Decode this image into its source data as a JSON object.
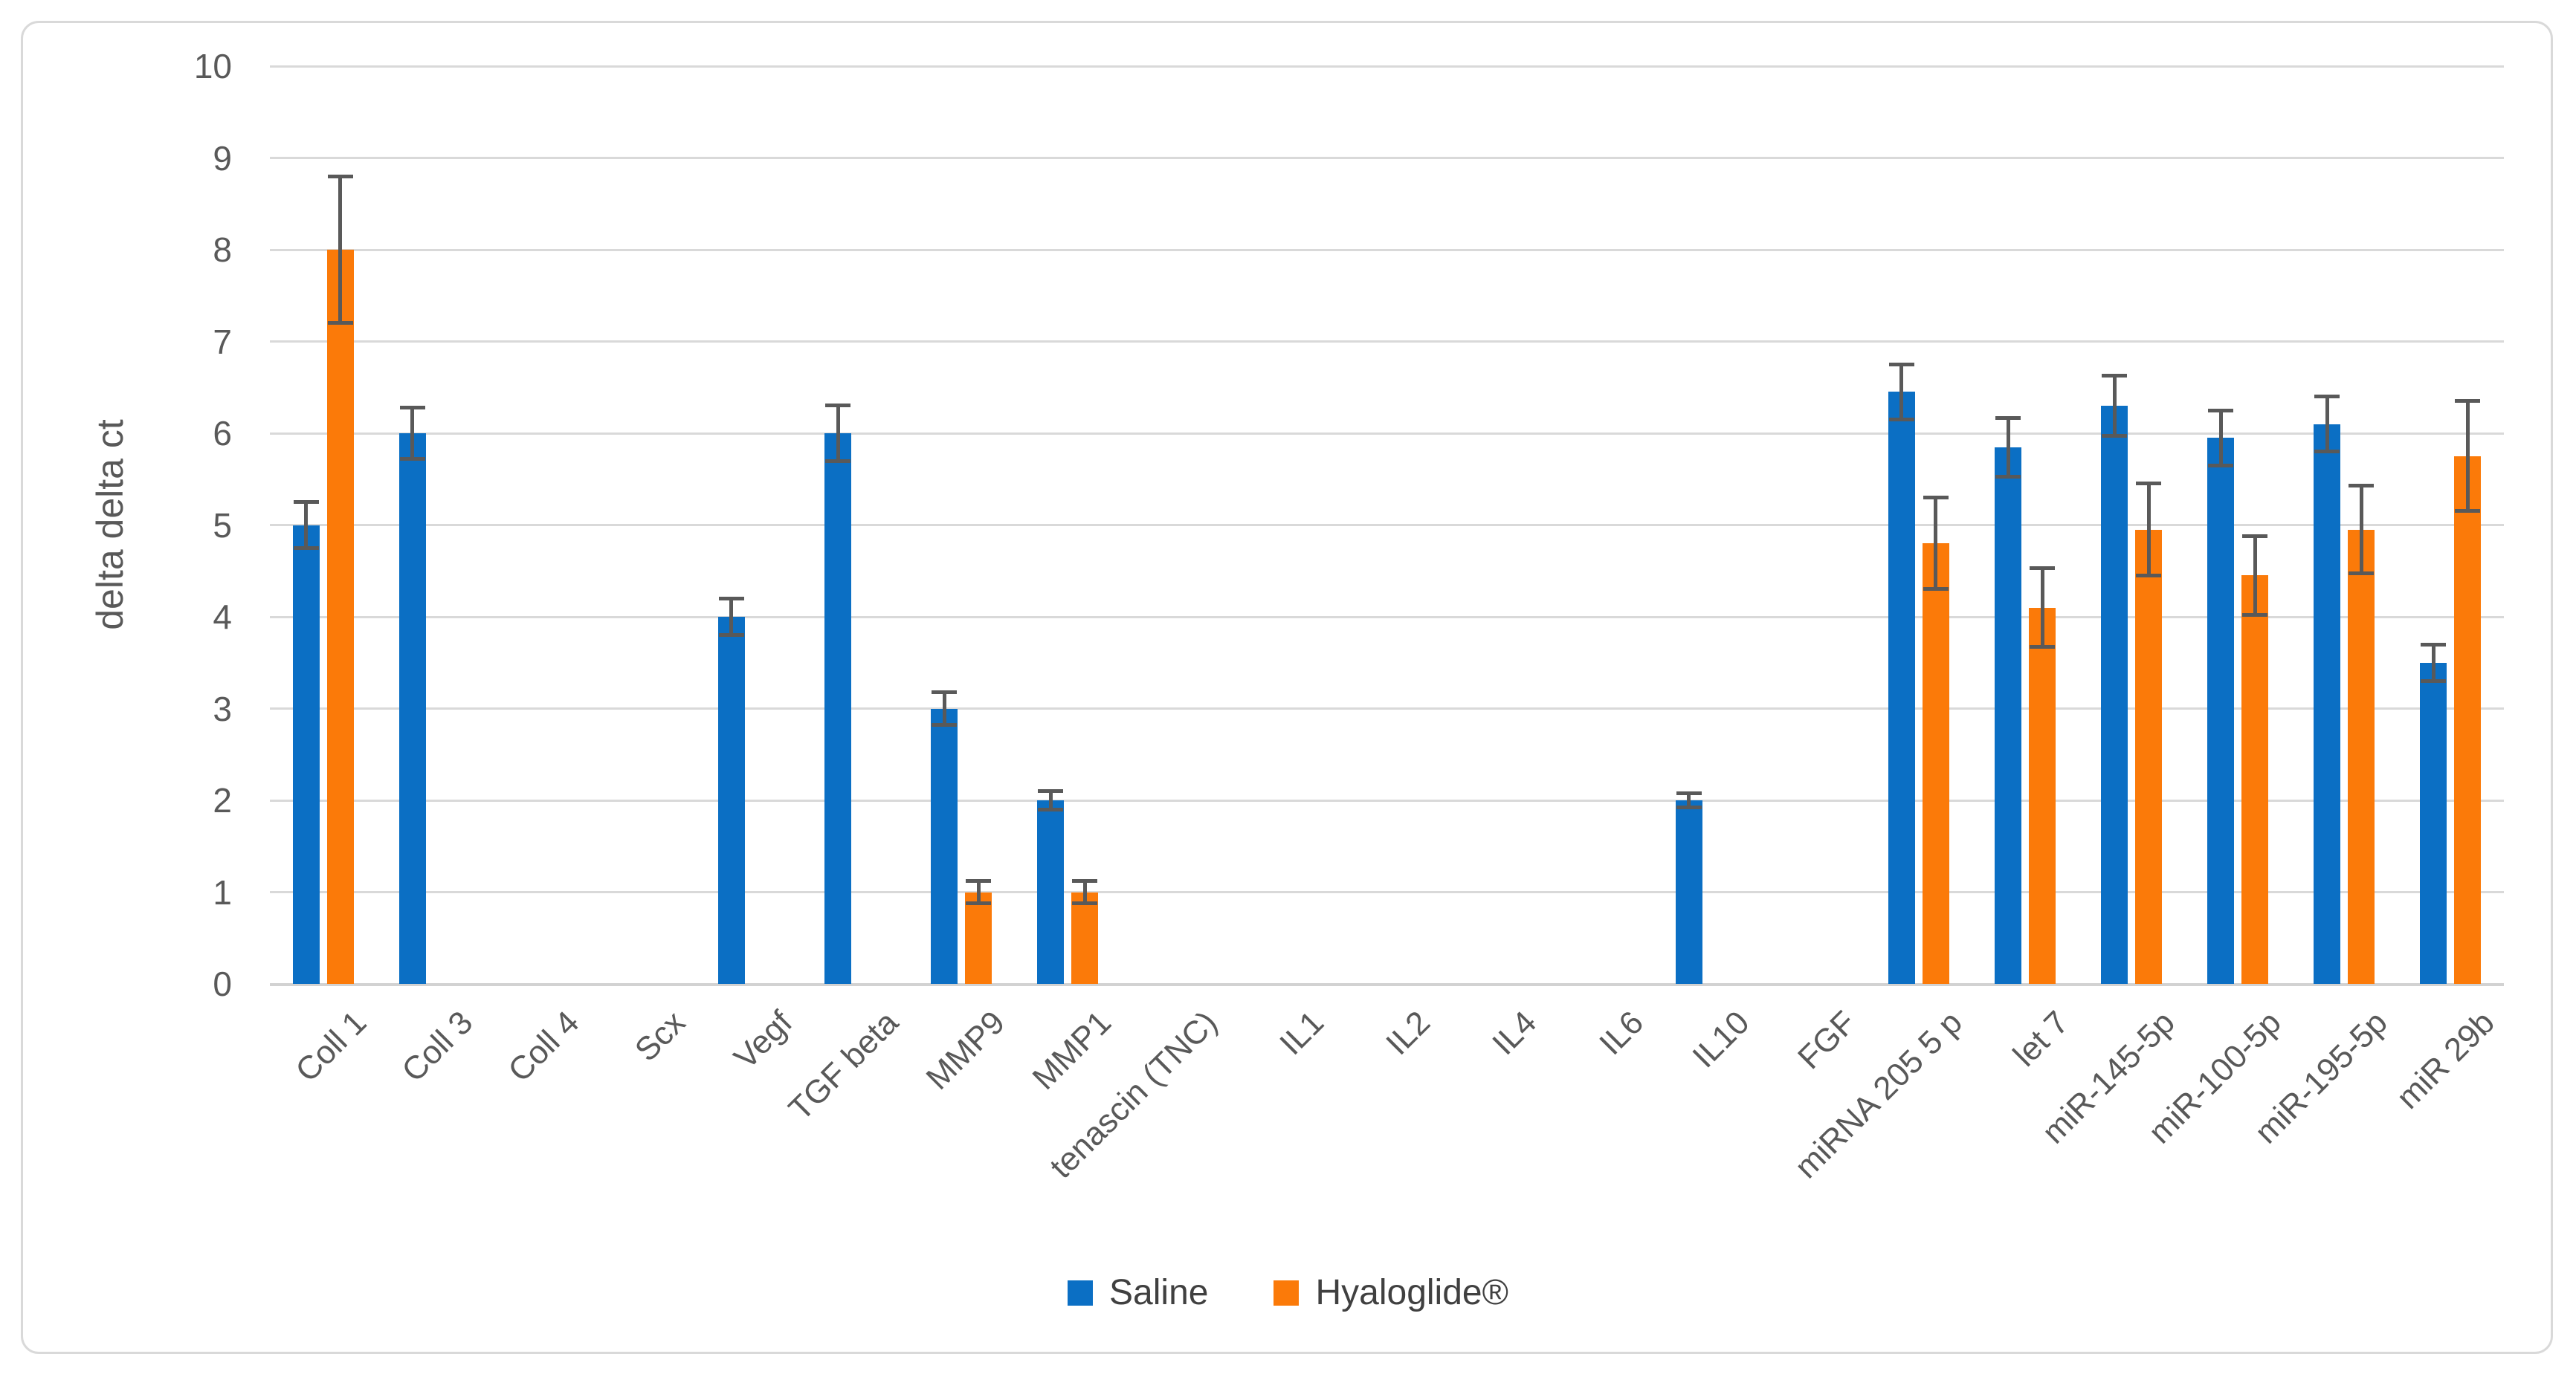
{
  "figure": {
    "background": "#ffffff",
    "border_color": "#d9d9d9"
  },
  "y_axis": {
    "title": "delta delta ct",
    "min": 0,
    "max": 10,
    "tick_step": 1,
    "tick_labels": [
      "0",
      "1",
      "2",
      "3",
      "4",
      "5",
      "6",
      "7",
      "8",
      "9",
      "10"
    ],
    "text_color": "#595959",
    "gridline_color": "#d9d9d9"
  },
  "legend": {
    "position": "bottom-center",
    "items": [
      {
        "label": "Saline",
        "color": "#0b6fc4"
      },
      {
        "label": "Hyaloglide®",
        "color": "#fb7a09"
      }
    ]
  },
  "error_bar_color": "#595959",
  "chart_data": {
    "type": "bar",
    "title": "",
    "xlabel": "",
    "ylabel": "delta delta ct",
    "ylim": [
      0,
      10
    ],
    "grid": true,
    "legend_position": "bottom",
    "categories": [
      "Coll 1",
      "Coll 3",
      "Coll 4",
      "Scx",
      "Vegf",
      "TGF beta",
      "MMP9",
      "MMP1",
      "tenascin (TNC)",
      "IL1",
      "IL2",
      "IL4",
      "IL6",
      "IL10",
      "FGF",
      "miRNA 205 5 p",
      "let 7",
      "miR-145-5p",
      "miR-100-5p",
      "miR-195-5p",
      "miR 29b"
    ],
    "series": [
      {
        "name": "Saline",
        "color": "#0b6fc4",
        "values": [
          5.0,
          6.0,
          0,
          0,
          4.0,
          6.0,
          3.0,
          2.0,
          0,
          0,
          0,
          0,
          0,
          2.0,
          0,
          6.45,
          5.85,
          6.3,
          5.95,
          6.1,
          3.5
        ],
        "errors": [
          0.25,
          0.28,
          0,
          0,
          0.2,
          0.3,
          0.18,
          0.1,
          0,
          0,
          0,
          0,
          0,
          0.08,
          0,
          0.3,
          0.32,
          0.33,
          0.3,
          0.3,
          0.2
        ]
      },
      {
        "name": "Hyaloglide®",
        "color": "#fb7a09",
        "values": [
          8.0,
          0,
          0,
          0,
          0,
          0,
          1.0,
          1.0,
          0,
          0,
          0,
          0,
          0,
          0,
          0,
          4.8,
          4.1,
          4.95,
          4.45,
          4.95,
          5.75
        ],
        "errors": [
          0.8,
          0,
          0,
          0,
          0,
          0,
          0.12,
          0.12,
          0,
          0,
          0,
          0,
          0,
          0,
          0,
          0.5,
          0.43,
          0.5,
          0.43,
          0.48,
          0.6
        ]
      }
    ]
  }
}
